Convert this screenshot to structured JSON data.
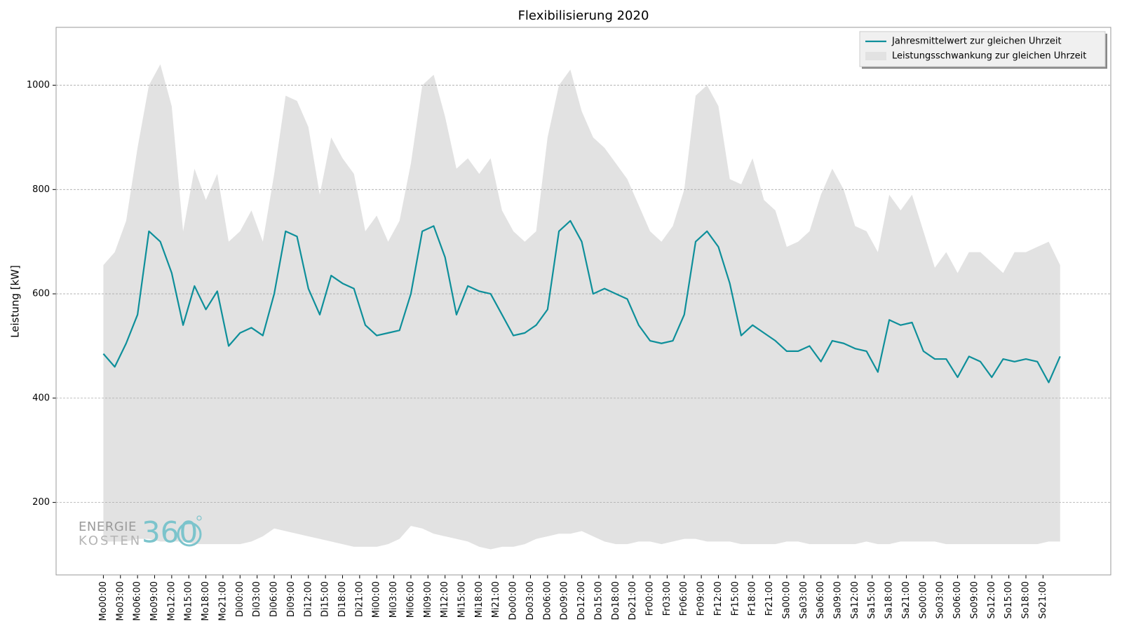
{
  "chart_data": {
    "type": "line-band",
    "title": "Flexibilisierung 2020",
    "ylabel": "Leistung [kW]",
    "logo": [
      "ENERGIE",
      "KOSTEN",
      "360"
    ],
    "x": [
      0,
      2,
      4,
      6,
      8,
      10,
      12,
      14,
      16,
      18,
      20,
      22,
      24,
      26,
      28,
      30,
      32,
      34,
      36,
      38,
      40,
      42,
      44,
      46,
      48,
      50,
      52,
      54,
      56,
      58,
      60,
      62,
      64,
      66,
      68,
      70,
      72,
      74,
      76,
      78,
      80,
      82,
      84,
      86,
      88,
      90,
      92,
      94,
      96,
      98,
      100,
      102,
      104,
      106,
      108,
      110,
      112,
      114,
      116,
      118,
      120,
      122,
      124,
      126,
      128,
      130,
      132,
      134,
      136,
      138,
      140,
      142,
      144,
      146,
      148,
      150,
      152,
      154,
      156,
      158,
      160,
      162,
      164,
      166,
      168
    ],
    "series": [
      {
        "name": "Jahresmittelwert zur gleichen Uhrzeit",
        "color": "#0e8f9a",
        "values": [
          485,
          460,
          505,
          560,
          720,
          700,
          640,
          540,
          615,
          570,
          605,
          500,
          525,
          535,
          520,
          600,
          720,
          710,
          610,
          560,
          635,
          620,
          610,
          540,
          520,
          525,
          530,
          600,
          720,
          730,
          670,
          560,
          615,
          605,
          600,
          560,
          520,
          525,
          540,
          570,
          720,
          740,
          700,
          600,
          610,
          600,
          590,
          540,
          510,
          505,
          510,
          560,
          700,
          720,
          690,
          620,
          520,
          540,
          525,
          510,
          490,
          490,
          500,
          470,
          510,
          505,
          495,
          490,
          450,
          550,
          540,
          545,
          490,
          475,
          475,
          440,
          480,
          470,
          440,
          475,
          470,
          475,
          470,
          430,
          480
        ]
      },
      {
        "name": "Leistungsschwankung zur gleichen Uhrzeit",
        "color": "#e2e2e2",
        "high": [
          655,
          680,
          740,
          880,
          1000,
          1040,
          960,
          720,
          840,
          780,
          830,
          700,
          720,
          760,
          700,
          830,
          980,
          970,
          920,
          790,
          900,
          860,
          830,
          720,
          750,
          700,
          740,
          850,
          1000,
          1020,
          940,
          840,
          860,
          830,
          860,
          760,
          720,
          700,
          720,
          900,
          1000,
          1030,
          950,
          900,
          880,
          850,
          820,
          770,
          720,
          700,
          730,
          800,
          980,
          1000,
          960,
          820,
          810,
          860,
          780,
          760,
          690,
          700,
          720,
          790,
          840,
          800,
          730,
          720,
          680,
          790,
          760,
          790,
          720,
          650,
          680,
          640,
          680,
          680,
          660,
          640,
          680,
          680,
          690,
          700,
          655
        ],
        "low": [
          125,
          125,
          125,
          130,
          130,
          125,
          125,
          125,
          120,
          120,
          120,
          120,
          120,
          125,
          135,
          150,
          145,
          140,
          135,
          130,
          125,
          120,
          115,
          115,
          115,
          120,
          130,
          155,
          150,
          140,
          135,
          130,
          125,
          115,
          110,
          115,
          115,
          120,
          130,
          135,
          140,
          140,
          145,
          135,
          125,
          120,
          120,
          125,
          125,
          120,
          125,
          130,
          130,
          125,
          125,
          125,
          120,
          120,
          120,
          120,
          125,
          125,
          120,
          120,
          120,
          120,
          120,
          125,
          120,
          120,
          125,
          125,
          125,
          125,
          120,
          120,
          120,
          120,
          120,
          120,
          120,
          120,
          120,
          125,
          125
        ]
      }
    ],
    "xlim": [
      -8.3,
      176.9
    ],
    "ylim": [
      61,
      1111
    ],
    "yticks": [
      200,
      400,
      600,
      800,
      1000
    ],
    "grid": true,
    "legend": "upper right",
    "xticks": [
      {
        "value": 0,
        "label": "Mo00:00"
      },
      {
        "value": 3,
        "label": "Mo03:00"
      },
      {
        "value": 6,
        "label": "Mo06:00"
      },
      {
        "value": 9,
        "label": "Mo09:00"
      },
      {
        "value": 12,
        "label": "Mo12:00"
      },
      {
        "value": 15,
        "label": "Mo15:00"
      },
      {
        "value": 18,
        "label": "Mo18:00"
      },
      {
        "value": 21,
        "label": "Mo21:00"
      },
      {
        "value": 24,
        "label": "Di00:00"
      },
      {
        "value": 27,
        "label": "Di03:00"
      },
      {
        "value": 30,
        "label": "Di06:00"
      },
      {
        "value": 33,
        "label": "Di09:00"
      },
      {
        "value": 36,
        "label": "Di12:00"
      },
      {
        "value": 39,
        "label": "Di15:00"
      },
      {
        "value": 42,
        "label": "Di18:00"
      },
      {
        "value": 45,
        "label": "Di21:00"
      },
      {
        "value": 48,
        "label": "Mi00:00"
      },
      {
        "value": 51,
        "label": "Mi03:00"
      },
      {
        "value": 54,
        "label": "Mi06:00"
      },
      {
        "value": 57,
        "label": "Mi09:00"
      },
      {
        "value": 60,
        "label": "Mi12:00"
      },
      {
        "value": 63,
        "label": "Mi15:00"
      },
      {
        "value": 66,
        "label": "Mi18:00"
      },
      {
        "value": 69,
        "label": "Mi21:00"
      },
      {
        "value": 72,
        "label": "Do00:00"
      },
      {
        "value": 75,
        "label": "Do03:00"
      },
      {
        "value": 78,
        "label": "Do06:00"
      },
      {
        "value": 81,
        "label": "Do09:00"
      },
      {
        "value": 84,
        "label": "Do12:00"
      },
      {
        "value": 87,
        "label": "Do15:00"
      },
      {
        "value": 90,
        "label": "Do18:00"
      },
      {
        "value": 93,
        "label": "Do21:00"
      },
      {
        "value": 96,
        "label": "Fr00:00"
      },
      {
        "value": 99,
        "label": "Fr03:00"
      },
      {
        "value": 102,
        "label": "Fr06:00"
      },
      {
        "value": 105,
        "label": "Fr09:00"
      },
      {
        "value": 108,
        "label": "Fr12:00"
      },
      {
        "value": 111,
        "label": "Fr15:00"
      },
      {
        "value": 114,
        "label": "Fr18:00"
      },
      {
        "value": 117,
        "label": "Fr21:00"
      },
      {
        "value": 120,
        "label": "Sa00:00"
      },
      {
        "value": 123,
        "label": "Sa03:00"
      },
      {
        "value": 126,
        "label": "Sa06:00"
      },
      {
        "value": 129,
        "label": "Sa09:00"
      },
      {
        "value": 132,
        "label": "Sa12:00"
      },
      {
        "value": 135,
        "label": "Sa15:00"
      },
      {
        "value": 138,
        "label": "Sa18:00"
      },
      {
        "value": 141,
        "label": "Sa21:00"
      },
      {
        "value": 144,
        "label": "So00:00"
      },
      {
        "value": 147,
        "label": "So03:00"
      },
      {
        "value": 150,
        "label": "So06:00"
      },
      {
        "value": 153,
        "label": "So09:00"
      },
      {
        "value": 156,
        "label": "So12:00"
      },
      {
        "value": 159,
        "label": "So15:00"
      },
      {
        "value": 162,
        "label": "So18:00"
      },
      {
        "value": 165,
        "label": "So21:00"
      }
    ]
  }
}
